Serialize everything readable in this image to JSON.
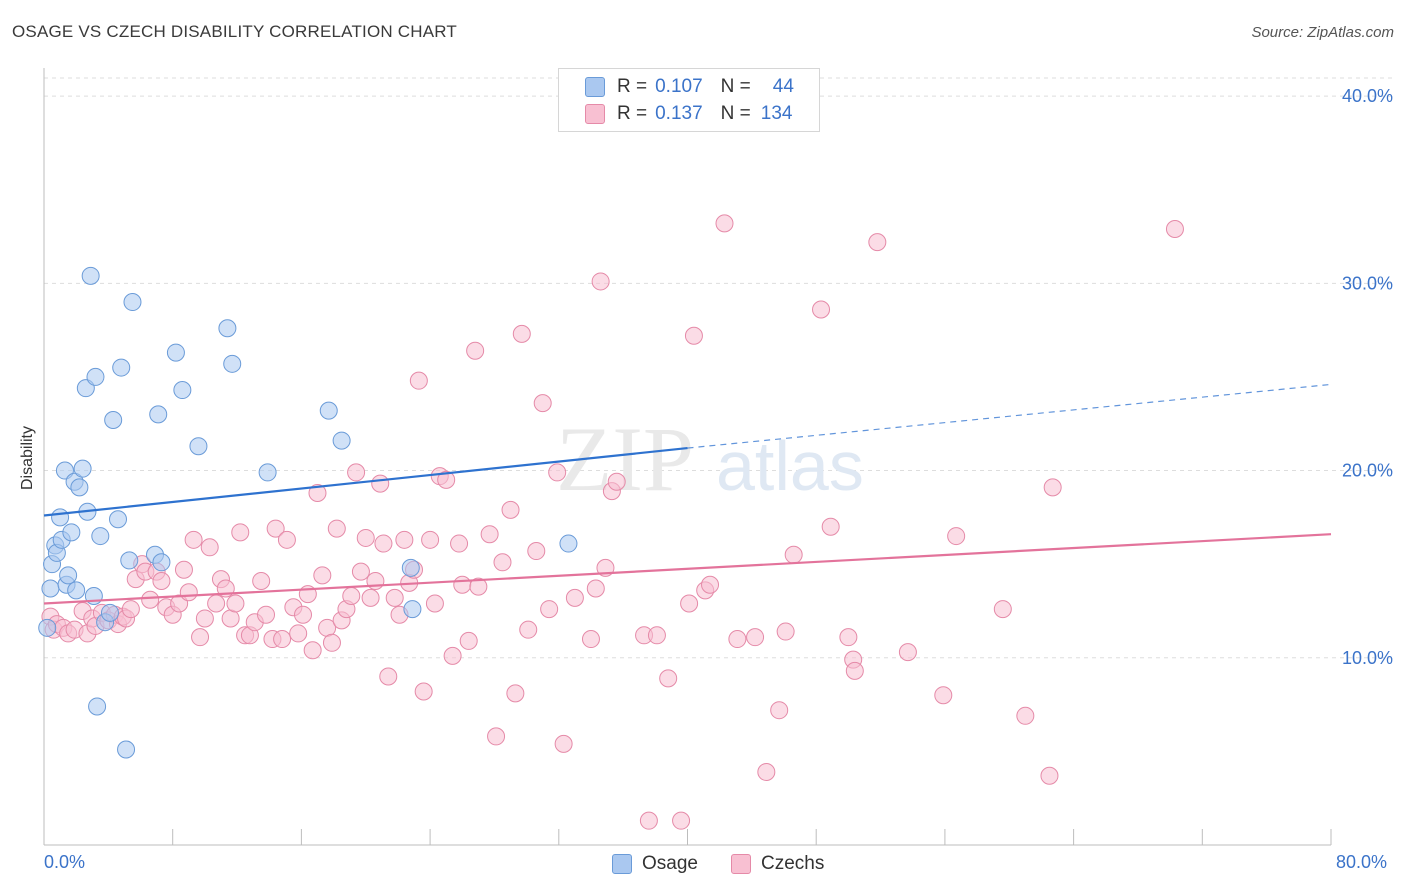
{
  "title": "OSAGE VS CZECH DISABILITY CORRELATION CHART",
  "source": "Source: ZipAtlas.com",
  "watermark": {
    "zip": "ZIP",
    "atlas": "atlas"
  },
  "legend": {
    "rows": [
      {
        "r_label": "R =",
        "r_value": "0.107",
        "n_label": "N =",
        "n_value": "44",
        "color": "#aac8f0",
        "border": "#6a9bd8"
      },
      {
        "r_label": "R =",
        "r_value": "0.137",
        "n_label": "N =",
        "n_value": "134",
        "color": "#f8c0d2",
        "border": "#e58aa8"
      }
    ]
  },
  "bottom_legend": {
    "osage": "Osage",
    "czechs": "Czechs"
  },
  "x_axis": {
    "min_label": "0.0%",
    "max_label": "80.0%"
  },
  "chart_data": {
    "type": "scatter",
    "title": "OSAGE VS CZECH DISABILITY CORRELATION CHART",
    "xlabel": "",
    "ylabel": "Disability",
    "xlim": [
      0,
      80
    ],
    "ylim": [
      0,
      41.5
    ],
    "y_ticks": [
      10,
      20,
      30,
      40
    ],
    "y_tick_labels": [
      "10.0%",
      "20.0%",
      "30.0%",
      "40.0%"
    ],
    "grid": true,
    "legend_position": "top-center",
    "series": [
      {
        "name": "Osage",
        "color": "#6a9bd8",
        "fill": "#aac8f0",
        "trend": {
          "x0": 0,
          "y0": 17.6,
          "x1": 40,
          "y1": 21.2,
          "dashed_to_x": 80,
          "dashed_to_y": 24.6,
          "color": "#2e72cf"
        },
        "points": [
          [
            0.2,
            11.6
          ],
          [
            0.4,
            13.7
          ],
          [
            0.5,
            15.0
          ],
          [
            0.7,
            16.0
          ],
          [
            0.8,
            15.6
          ],
          [
            1.0,
            17.5
          ],
          [
            1.1,
            16.3
          ],
          [
            1.3,
            20.0
          ],
          [
            1.4,
            13.9
          ],
          [
            1.5,
            14.4
          ],
          [
            1.7,
            16.7
          ],
          [
            1.9,
            19.4
          ],
          [
            2.0,
            13.6
          ],
          [
            2.2,
            19.1
          ],
          [
            2.4,
            20.1
          ],
          [
            2.6,
            24.4
          ],
          [
            2.7,
            17.8
          ],
          [
            2.9,
            30.4
          ],
          [
            3.1,
            13.3
          ],
          [
            3.2,
            25.0
          ],
          [
            3.3,
            7.4
          ],
          [
            3.5,
            16.5
          ],
          [
            3.8,
            11.9
          ],
          [
            4.1,
            12.4
          ],
          [
            4.3,
            22.7
          ],
          [
            4.6,
            17.4
          ],
          [
            4.8,
            25.5
          ],
          [
            5.1,
            5.1
          ],
          [
            5.3,
            15.2
          ],
          [
            5.5,
            29.0
          ],
          [
            6.9,
            15.5
          ],
          [
            7.1,
            23.0
          ],
          [
            7.3,
            15.1
          ],
          [
            8.2,
            26.3
          ],
          [
            8.6,
            24.3
          ],
          [
            9.6,
            21.3
          ],
          [
            11.4,
            27.6
          ],
          [
            11.7,
            25.7
          ],
          [
            13.9,
            19.9
          ],
          [
            17.7,
            23.2
          ],
          [
            18.5,
            21.6
          ],
          [
            22.8,
            14.8
          ],
          [
            22.9,
            12.6
          ],
          [
            32.6,
            16.1
          ]
        ]
      },
      {
        "name": "Czechs",
        "color": "#e58aa8",
        "fill": "#f8c0d2",
        "trend": {
          "x0": 0,
          "y0": 12.9,
          "x1": 80,
          "y1": 16.6,
          "color": "#e3739b"
        },
        "points": [
          [
            0.4,
            12.2
          ],
          [
            0.6,
            11.5
          ],
          [
            0.8,
            11.8
          ],
          [
            1.2,
            11.6
          ],
          [
            1.5,
            11.3
          ],
          [
            1.9,
            11.5
          ],
          [
            2.4,
            12.5
          ],
          [
            2.7,
            11.3
          ],
          [
            3.0,
            12.1
          ],
          [
            3.2,
            11.7
          ],
          [
            3.6,
            12.4
          ],
          [
            4.0,
            12.0
          ],
          [
            4.4,
            12.3
          ],
          [
            4.6,
            11.8
          ],
          [
            4.9,
            12.2
          ],
          [
            5.1,
            12.1
          ],
          [
            5.4,
            12.6
          ],
          [
            5.7,
            14.2
          ],
          [
            6.1,
            15.0
          ],
          [
            6.3,
            14.6
          ],
          [
            6.6,
            13.1
          ],
          [
            7.0,
            14.6
          ],
          [
            7.3,
            14.1
          ],
          [
            7.6,
            12.7
          ],
          [
            8.0,
            12.3
          ],
          [
            8.4,
            12.9
          ],
          [
            8.7,
            14.7
          ],
          [
            9.0,
            13.5
          ],
          [
            9.3,
            16.3
          ],
          [
            9.7,
            11.1
          ],
          [
            10.0,
            12.1
          ],
          [
            10.3,
            15.9
          ],
          [
            10.7,
            12.9
          ],
          [
            11.0,
            14.2
          ],
          [
            11.3,
            13.7
          ],
          [
            11.6,
            12.1
          ],
          [
            11.9,
            12.9
          ],
          [
            12.2,
            16.7
          ],
          [
            12.5,
            11.2
          ],
          [
            12.8,
            11.2
          ],
          [
            13.1,
            11.9
          ],
          [
            13.5,
            14.1
          ],
          [
            13.8,
            12.3
          ],
          [
            14.2,
            11.0
          ],
          [
            14.4,
            16.9
          ],
          [
            14.8,
            11.0
          ],
          [
            15.1,
            16.3
          ],
          [
            15.5,
            12.7
          ],
          [
            15.8,
            11.3
          ],
          [
            16.1,
            12.3
          ],
          [
            16.4,
            13.4
          ],
          [
            16.7,
            10.4
          ],
          [
            17.0,
            18.8
          ],
          [
            17.3,
            14.4
          ],
          [
            17.6,
            11.6
          ],
          [
            17.9,
            10.8
          ],
          [
            18.2,
            16.9
          ],
          [
            18.5,
            12.0
          ],
          [
            18.8,
            12.6
          ],
          [
            19.1,
            13.3
          ],
          [
            19.4,
            19.9
          ],
          [
            19.7,
            14.6
          ],
          [
            20.0,
            16.4
          ],
          [
            20.3,
            13.2
          ],
          [
            20.6,
            14.1
          ],
          [
            20.9,
            19.3
          ],
          [
            21.1,
            16.1
          ],
          [
            21.4,
            9.0
          ],
          [
            21.8,
            13.2
          ],
          [
            22.1,
            12.3
          ],
          [
            22.4,
            16.3
          ],
          [
            22.7,
            14.0
          ],
          [
            23.0,
            14.7
          ],
          [
            23.3,
            24.8
          ],
          [
            23.6,
            8.2
          ],
          [
            24.0,
            16.3
          ],
          [
            24.3,
            12.9
          ],
          [
            24.6,
            19.7
          ],
          [
            25.0,
            19.5
          ],
          [
            25.4,
            10.1
          ],
          [
            25.8,
            16.1
          ],
          [
            26.0,
            13.9
          ],
          [
            26.4,
            10.9
          ],
          [
            26.8,
            26.4
          ],
          [
            27.0,
            13.8
          ],
          [
            27.7,
            16.6
          ],
          [
            28.1,
            5.8
          ],
          [
            28.5,
            15.1
          ],
          [
            29.0,
            17.9
          ],
          [
            29.3,
            8.1
          ],
          [
            29.7,
            27.3
          ],
          [
            30.1,
            11.5
          ],
          [
            30.6,
            15.7
          ],
          [
            31.0,
            23.6
          ],
          [
            31.4,
            12.6
          ],
          [
            31.9,
            19.9
          ],
          [
            32.3,
            5.4
          ],
          [
            33.0,
            13.2
          ],
          [
            34.0,
            11.0
          ],
          [
            34.3,
            13.7
          ],
          [
            34.6,
            30.1
          ],
          [
            34.9,
            14.8
          ],
          [
            35.3,
            18.9
          ],
          [
            35.6,
            19.4
          ],
          [
            37.3,
            11.2
          ],
          [
            37.6,
            1.3
          ],
          [
            38.1,
            11.2
          ],
          [
            38.8,
            8.9
          ],
          [
            39.6,
            1.3
          ],
          [
            40.1,
            12.9
          ],
          [
            40.4,
            27.2
          ],
          [
            41.1,
            13.6
          ],
          [
            41.4,
            13.9
          ],
          [
            42.3,
            33.2
          ],
          [
            43.1,
            11.0
          ],
          [
            44.2,
            11.1
          ],
          [
            44.9,
            3.9
          ],
          [
            45.7,
            7.2
          ],
          [
            46.1,
            11.4
          ],
          [
            46.6,
            15.5
          ],
          [
            48.3,
            28.6
          ],
          [
            48.9,
            17.0
          ],
          [
            50.0,
            11.1
          ],
          [
            50.3,
            9.9
          ],
          [
            50.4,
            9.3
          ],
          [
            51.8,
            32.2
          ],
          [
            53.7,
            10.3
          ],
          [
            55.9,
            8.0
          ],
          [
            56.7,
            16.5
          ],
          [
            59.6,
            12.6
          ],
          [
            61.0,
            6.9
          ],
          [
            62.5,
            3.7
          ],
          [
            62.7,
            19.1
          ],
          [
            70.3,
            32.9
          ]
        ]
      }
    ]
  }
}
